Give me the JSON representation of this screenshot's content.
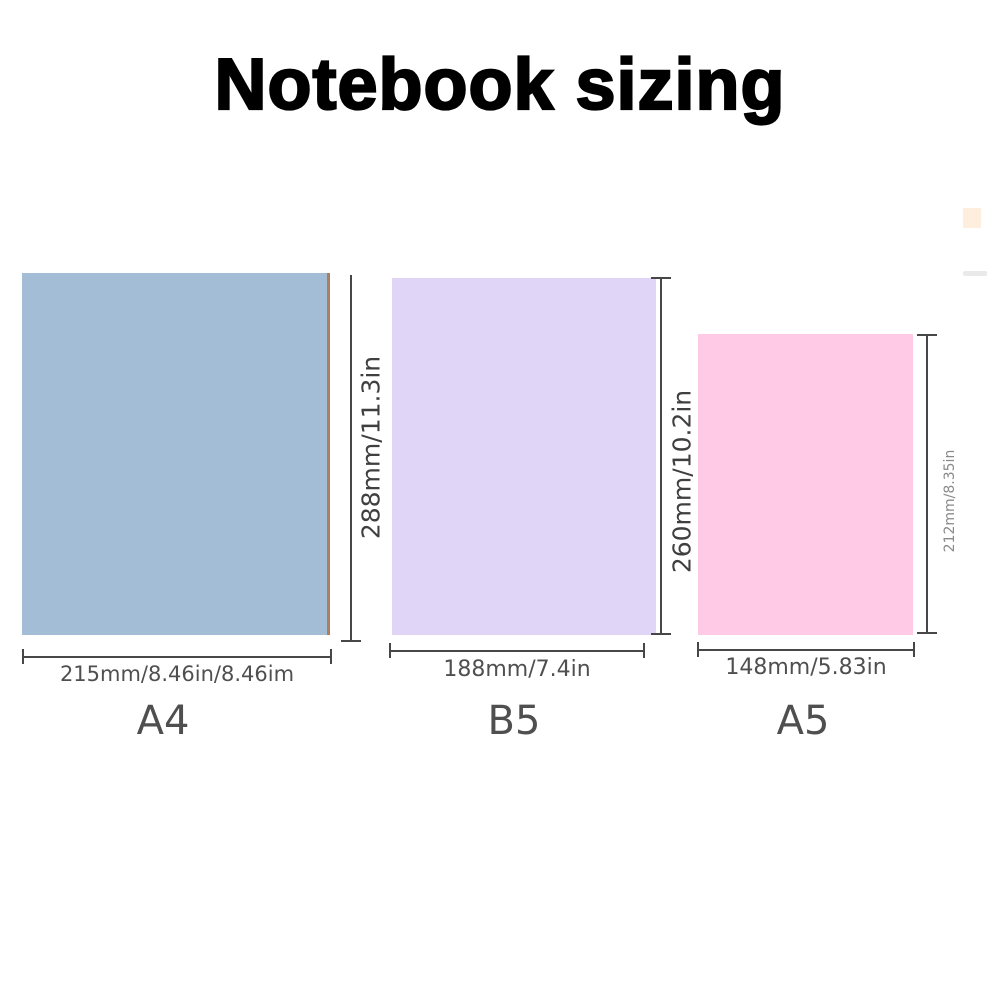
{
  "title": "Notebook sizing",
  "notebooks": [
    {
      "name": "A4",
      "fill_color": "#a4bdd6",
      "spine_color": "#ae7d5c",
      "width_label": "215mm/8.46in/8.46im",
      "height_label": "288mm/11.3in"
    },
    {
      "name": "B5",
      "fill_color": "#e1d5f7",
      "width_label": "188mm/7.4in",
      "height_label": "260mm/10.2in"
    },
    {
      "name": "A5",
      "fill_color": "#fecae6",
      "width_label": "148mm/5.83in",
      "height_label": "212mm/8.35in"
    }
  ],
  "colors": {
    "dimension_line": "#474747",
    "label_text": "#4f4f4f",
    "small_label_text": "#8a8a8a",
    "title_text": "#000000"
  }
}
